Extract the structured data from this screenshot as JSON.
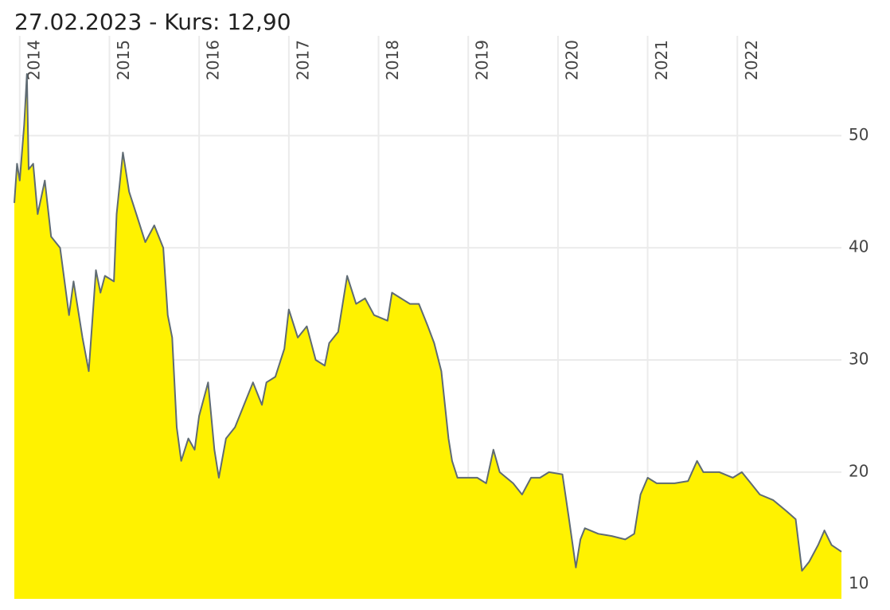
{
  "chart_data": {
    "type": "area",
    "title": "27.02.2023  -  Kurs: 12,90",
    "x": [
      2013.94,
      2013.97,
      2014.0,
      2014.05,
      2014.08,
      2014.1,
      2014.15,
      2014.2,
      2014.28,
      2014.35,
      2014.45,
      2014.55,
      2014.6,
      2014.7,
      2014.77,
      2014.85,
      2014.9,
      2014.95,
      2015.05,
      2015.08,
      2015.15,
      2015.22,
      2015.3,
      2015.4,
      2015.5,
      2015.6,
      2015.65,
      2015.7,
      2015.75,
      2015.8,
      2015.88,
      2015.95,
      2016.0,
      2016.1,
      2016.17,
      2016.22,
      2016.3,
      2016.4,
      2016.5,
      2016.6,
      2016.7,
      2016.75,
      2016.85,
      2016.95,
      2017.0,
      2017.1,
      2017.2,
      2017.3,
      2017.4,
      2017.45,
      2017.55,
      2017.65,
      2017.75,
      2017.85,
      2017.95,
      2018.1,
      2018.15,
      2018.25,
      2018.35,
      2018.45,
      2018.55,
      2018.62,
      2018.7,
      2018.78,
      2018.82,
      2018.88,
      2018.95,
      2019.1,
      2019.2,
      2019.28,
      2019.35,
      2019.5,
      2019.6,
      2019.7,
      2019.8,
      2019.9,
      2020.05,
      2020.12,
      2020.2,
      2020.25,
      2020.3,
      2020.45,
      2020.6,
      2020.75,
      2020.85,
      2020.92,
      2021.0,
      2021.1,
      2021.3,
      2021.45,
      2021.55,
      2021.62,
      2021.8,
      2021.95,
      2022.05,
      2022.15,
      2022.25,
      2022.4,
      2022.55,
      2022.65,
      2022.72,
      2022.8,
      2022.9,
      2022.97,
      2023.05,
      2023.16
    ],
    "values": [
      44,
      47.5,
      46,
      51,
      55.5,
      47,
      47.5,
      43,
      46,
      41,
      40,
      34,
      37,
      32,
      29,
      38,
      36,
      37.5,
      37,
      43,
      48.5,
      45,
      43,
      40.5,
      42,
      40,
      34,
      32,
      24,
      21,
      23,
      22,
      25,
      28,
      22,
      19.5,
      23,
      24,
      26,
      28,
      26,
      28,
      28.5,
      31,
      34.5,
      32,
      33,
      30,
      29.5,
      31.5,
      32.5,
      37.5,
      35,
      35.5,
      34,
      33.5,
      36,
      35.5,
      35,
      35,
      33,
      31.5,
      29,
      23,
      21,
      19.5,
      19.5,
      19.5,
      19,
      22,
      20,
      19,
      18,
      19.5,
      19.5,
      20,
      19.8,
      16,
      11.5,
      14,
      15,
      14.5,
      14.3,
      14,
      14.5,
      18,
      19.5,
      19,
      19,
      19.2,
      21,
      20,
      20,
      19.5,
      20,
      19,
      18,
      17.5,
      16.5,
      15.8,
      11.2,
      12,
      13.5,
      14.8,
      13.5,
      12.9
    ],
    "fill_color": "#fff200",
    "line_color": "#5f6b73",
    "xlim": [
      2013.94,
      2023.16
    ],
    "xticks": [
      2014,
      2015,
      2016,
      2017,
      2018,
      2019,
      2020,
      2021,
      2022
    ],
    "ylim": [
      8.7,
      58.9
    ],
    "yticks": [
      10,
      20,
      30,
      40,
      50
    ],
    "grid": true
  }
}
